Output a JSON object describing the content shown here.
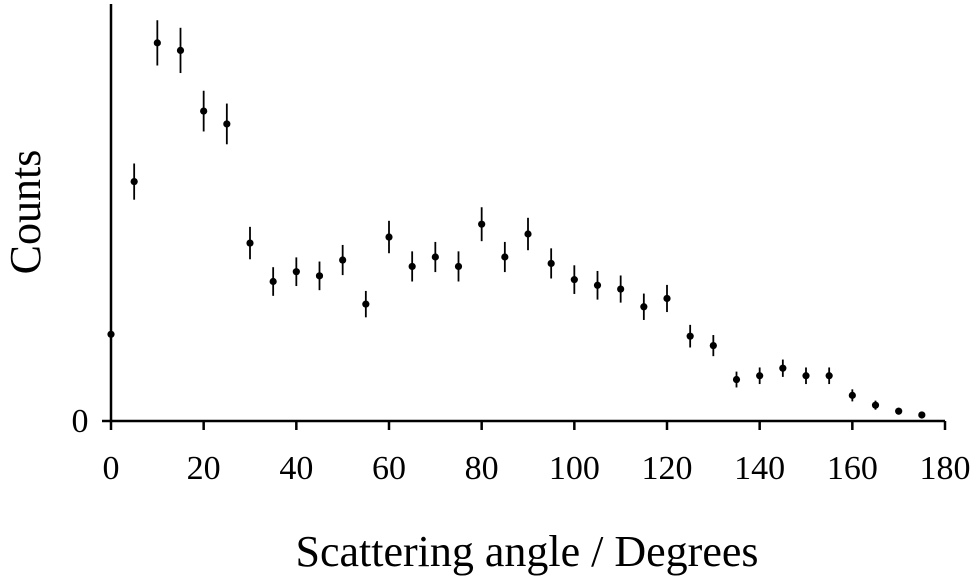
{
  "chart_data": {
    "type": "scatter",
    "title": "",
    "xlabel": "Scattering angle / Degrees",
    "ylabel": "Counts",
    "xlim": [
      0,
      180
    ],
    "ylim": [
      0,
      100
    ],
    "grid": false,
    "legend": "none",
    "x_ticks": [
      0,
      20,
      40,
      60,
      80,
      100,
      120,
      140,
      160,
      180
    ],
    "y_ticks": [
      0
    ],
    "series": [
      {
        "marker": "dot-with-error-bars",
        "color": "#000000",
        "points": [
          {
            "x": 0,
            "y": 23.0,
            "err": 0
          },
          {
            "x": 5,
            "y": 63.5,
            "err": 4.8
          },
          {
            "x": 10,
            "y": 100.3,
            "err": 6.0
          },
          {
            "x": 15,
            "y": 98.3,
            "err": 6.0
          },
          {
            "x": 20,
            "y": 82.2,
            "err": 5.4
          },
          {
            "x": 25,
            "y": 78.8,
            "err": 5.4
          },
          {
            "x": 30,
            "y": 47.2,
            "err": 4.3
          },
          {
            "x": 35,
            "y": 37.0,
            "err": 3.8
          },
          {
            "x": 40,
            "y": 39.6,
            "err": 3.8
          },
          {
            "x": 45,
            "y": 38.5,
            "err": 3.8
          },
          {
            "x": 50,
            "y": 42.7,
            "err": 4.0
          },
          {
            "x": 55,
            "y": 31.0,
            "err": 3.5
          },
          {
            "x": 60,
            "y": 48.8,
            "err": 4.3
          },
          {
            "x": 65,
            "y": 41.0,
            "err": 4.0
          },
          {
            "x": 70,
            "y": 43.5,
            "err": 4.0
          },
          {
            "x": 75,
            "y": 41.0,
            "err": 4.0
          },
          {
            "x": 80,
            "y": 52.2,
            "err": 4.5
          },
          {
            "x": 85,
            "y": 43.5,
            "err": 4.0
          },
          {
            "x": 90,
            "y": 49.6,
            "err": 4.3
          },
          {
            "x": 95,
            "y": 41.8,
            "err": 4.0
          },
          {
            "x": 100,
            "y": 37.5,
            "err": 3.8
          },
          {
            "x": 105,
            "y": 36.0,
            "err": 3.8
          },
          {
            "x": 110,
            "y": 35.0,
            "err": 3.6
          },
          {
            "x": 115,
            "y": 30.3,
            "err": 3.5
          },
          {
            "x": 120,
            "y": 32.5,
            "err": 3.6
          },
          {
            "x": 125,
            "y": 22.5,
            "err": 3.0
          },
          {
            "x": 130,
            "y": 20.0,
            "err": 2.8
          },
          {
            "x": 135,
            "y": 11.0,
            "err": 2.1
          },
          {
            "x": 140,
            "y": 12.0,
            "err": 2.2
          },
          {
            "x": 145,
            "y": 14.0,
            "err": 2.3
          },
          {
            "x": 150,
            "y": 12.0,
            "err": 2.2
          },
          {
            "x": 155,
            "y": 12.0,
            "err": 2.2
          },
          {
            "x": 160,
            "y": 6.8,
            "err": 1.6
          },
          {
            "x": 165,
            "y": 4.2,
            "err": 1.2
          },
          {
            "x": 170,
            "y": 2.6,
            "err": 0.9
          },
          {
            "x": 175,
            "y": 1.6,
            "err": 0.7
          }
        ]
      }
    ]
  }
}
